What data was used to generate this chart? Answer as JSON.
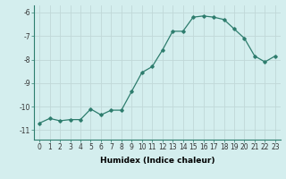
{
  "x": [
    0,
    1,
    2,
    3,
    4,
    5,
    6,
    7,
    8,
    9,
    10,
    11,
    12,
    13,
    14,
    15,
    16,
    17,
    18,
    19,
    20,
    21,
    22,
    23
  ],
  "y": [
    -10.7,
    -10.5,
    -10.6,
    -10.55,
    -10.55,
    -10.1,
    -10.35,
    -10.15,
    -10.15,
    -9.35,
    -8.55,
    -8.3,
    -7.6,
    -6.8,
    -6.8,
    -6.2,
    -6.15,
    -6.2,
    -6.3,
    -6.7,
    -7.1,
    -7.85,
    -8.1,
    -7.85
  ],
  "line_color": "#2e7d6e",
  "marker": "D",
  "marker_size": 1.8,
  "bg_color": "#d4eeee",
  "grid_color": "#c0d8d8",
  "xlabel": "Humidex (Indice chaleur)",
  "xlim": [
    -0.5,
    23.5
  ],
  "ylim": [
    -11.4,
    -5.7
  ],
  "yticks": [
    -11,
    -10,
    -9,
    -8,
    -7,
    -6
  ],
  "xticks": [
    0,
    1,
    2,
    3,
    4,
    5,
    6,
    7,
    8,
    9,
    10,
    11,
    12,
    13,
    14,
    15,
    16,
    17,
    18,
    19,
    20,
    21,
    22,
    23
  ],
  "xlabel_fontsize": 6.5,
  "tick_fontsize": 5.5,
  "line_width": 0.9,
  "spine_color": "#2e7d6e"
}
